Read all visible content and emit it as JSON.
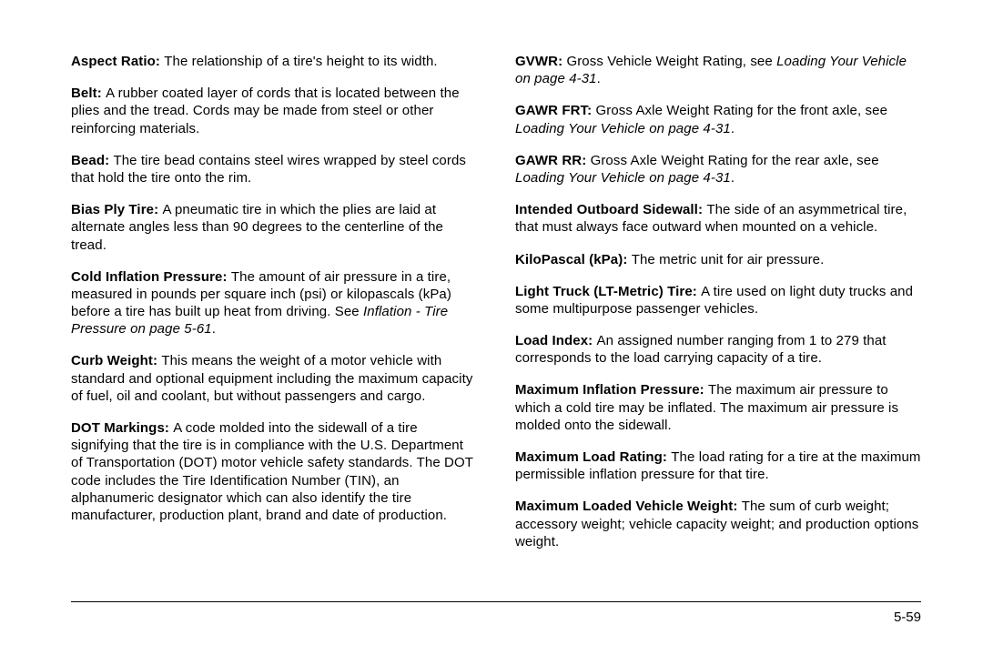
{
  "page_number": "5-59",
  "left": [
    {
      "term": "Aspect Ratio:",
      "body": "The relationship of a tire's height to its width."
    },
    {
      "term": "Belt:",
      "body": "A rubber coated layer of cords that is located between the plies and the tread. Cords may be made from steel or other reinforcing materials."
    },
    {
      "term": "Bead:",
      "body": "The tire bead contains steel wires wrapped by steel cords that hold the tire onto the rim."
    },
    {
      "term": "Bias Ply Tire:",
      "body": "A pneumatic tire in which the plies are laid at alternate angles less than 90 degrees to the centerline of the tread."
    },
    {
      "term": "Cold Inflation Pressure:",
      "body": "The amount of air pressure in a tire, measured in pounds per square inch (psi) or kilopascals (kPa) before a tire has built up heat from driving. See ",
      "ital": "Inflation - Tire Pressure on page 5-61",
      "tail": "."
    },
    {
      "term": "Curb Weight:",
      "body": "This means the weight of a motor vehicle with standard and optional equipment including the maximum capacity of fuel, oil and coolant, but without passengers and cargo."
    },
    {
      "term": "DOT Markings:",
      "body": "A code molded into the sidewall of a tire signifying that the tire is in compliance with the U.S. Department of Transportation (DOT) motor vehicle safety standards. The DOT code includes the Tire Identification Number (TIN), an alphanumeric designator which can also identify the tire manufacturer, production plant, brand and date of production."
    }
  ],
  "right": [
    {
      "term": "GVWR:",
      "body": "Gross Vehicle Weight Rating, see ",
      "ital": "Loading Your Vehicle on page 4-31",
      "tail": "."
    },
    {
      "term": "GAWR FRT:",
      "body": "Gross Axle Weight Rating for the front axle, see ",
      "ital": "Loading Your Vehicle on page 4-31",
      "tail": "."
    },
    {
      "term": "GAWR RR:",
      "body": "Gross Axle Weight Rating for the rear axle, see ",
      "ital": "Loading Your Vehicle on page 4-31",
      "tail": "."
    },
    {
      "term": "Intended Outboard Sidewall:",
      "body": "The side of an asymmetrical tire, that must always face outward when mounted on a vehicle."
    },
    {
      "term": "KiloPascal (kPa):",
      "body": "The metric unit for air pressure."
    },
    {
      "term": "Light Truck (LT-Metric) Tire:",
      "body": "A tire used on light duty trucks and some multipurpose passenger vehicles."
    },
    {
      "term": "Load Index:",
      "body": "An assigned number ranging from 1 to 279 that corresponds to the load carrying capacity of a tire."
    },
    {
      "term": "Maximum Inflation Pressure:",
      "body": "The maximum air pressure to which a cold tire may be inflated. The maximum air pressure is molded onto the sidewall."
    },
    {
      "term": "Maximum Load Rating:",
      "body": "The load rating for a tire at the maximum permissible inflation pressure for that tire."
    },
    {
      "term": "Maximum Loaded Vehicle Weight:",
      "body": "The sum of curb weight; accessory weight; vehicle capacity weight; and production options weight."
    }
  ]
}
